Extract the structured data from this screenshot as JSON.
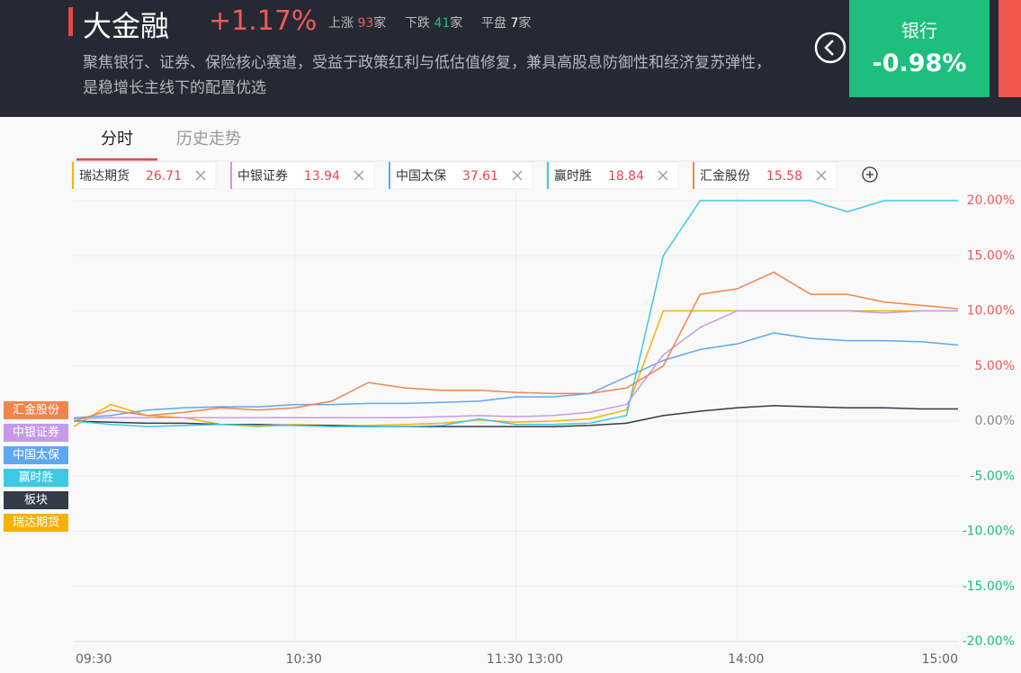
{
  "header": {
    "title": "大金融",
    "change": "+1.17%",
    "up_label": "上涨",
    "up_count": 93,
    "down_label": "下跌",
    "down_count": 41,
    "flat_label": "平盘",
    "flat_count": 7,
    "unit": "家",
    "description": "聚焦银行、证券、保险核心赛道，受益于政策红利与低估值修复，兼具高股息防御性和经济复苏弹性，是稳增长主线下的配置优选"
  },
  "sector_card": {
    "name": "银行",
    "change": "-0.98%"
  },
  "tabs": [
    "分时",
    "历史走势"
  ],
  "chips": [
    {
      "name": "瑞达期货",
      "value": 26.71
    },
    {
      "name": "中银证券",
      "value": 13.94
    },
    {
      "name": "中国太保",
      "value": 37.61
    },
    {
      "name": "赢时胜",
      "value": 18.84
    },
    {
      "name": "汇金股份",
      "value": 15.58
    }
  ],
  "chart_data": {
    "type": "line",
    "categories": [
      "09:30",
      null,
      null,
      null,
      null,
      null,
      "10:30",
      null,
      null,
      null,
      null,
      null,
      "11:30 13:00",
      null,
      null,
      null,
      null,
      null,
      "14:00",
      null,
      null,
      null,
      null,
      null,
      "15:00"
    ],
    "series": [
      {
        "name": "汇金股份",
        "color": "#f0844f",
        "values": [
          0,
          1.0,
          0.5,
          0.8,
          1.2,
          1.0,
          1.2,
          1.8,
          3.5,
          3.0,
          2.8,
          2.8,
          2.6,
          2.5,
          2.5,
          3.0,
          5,
          11.5,
          12,
          13.5,
          11.5,
          11.5,
          10.8,
          10.5,
          10.2
        ]
      },
      {
        "name": "中银证券",
        "color": "#c59be8",
        "values": [
          0.2,
          0.3,
          0.3,
          0.3,
          0.3,
          0.3,
          0.3,
          0.3,
          0.3,
          0.3,
          0.4,
          0.5,
          0.4,
          0.5,
          0.8,
          1.5,
          6,
          8.5,
          10,
          10,
          10,
          10,
          9.8,
          10,
          10
        ]
      },
      {
        "name": "中国太保",
        "color": "#5ea8f0",
        "values": [
          0.3,
          0.5,
          1.0,
          1.2,
          1.3,
          1.3,
          1.5,
          1.5,
          1.6,
          1.6,
          1.7,
          1.8,
          2.2,
          2.2,
          2.5,
          4,
          5.5,
          6.5,
          7,
          8,
          7.5,
          7.3,
          7.3,
          7.2,
          6.9
        ]
      },
      {
        "name": "赢时胜",
        "color": "#3ec8e4",
        "values": [
          0,
          -0.3,
          -0.5,
          -0.4,
          -0.3,
          -0.4,
          -0.4,
          -0.5,
          -0.5,
          -0.5,
          -0.4,
          0.2,
          -0.3,
          -0.3,
          -0.2,
          0.5,
          15,
          20,
          20,
          20,
          20,
          19,
          20,
          20,
          20
        ]
      },
      {
        "name": "板块",
        "color": "#333a48",
        "values": [
          0,
          -0.1,
          -0.2,
          -0.2,
          -0.3,
          -0.3,
          -0.4,
          -0.4,
          -0.5,
          -0.5,
          -0.5,
          -0.5,
          -0.5,
          -0.5,
          -0.4,
          -0.2,
          0.5,
          0.9,
          1.2,
          1.4,
          1.3,
          1.2,
          1.2,
          1.1,
          1.1
        ]
      },
      {
        "name": "瑞达期货",
        "color": "#f5b200",
        "values": [
          -0.5,
          1.5,
          0.5,
          0.3,
          -0.3,
          -0.5,
          -0.3,
          -0.4,
          -0.4,
          -0.3,
          -0.2,
          0.1,
          -0.1,
          0,
          0.2,
          1.0,
          10,
          10,
          10,
          10,
          10,
          10,
          10,
          10,
          10
        ]
      }
    ],
    "ylim": [
      -20,
      20
    ],
    "yticks": [
      {
        "value": -20,
        "label": "-20.00%"
      },
      {
        "value": -15,
        "label": "-15.00%"
      },
      {
        "value": -10,
        "label": "-10.00%"
      },
      {
        "value": -5,
        "label": "-5.00%"
      },
      {
        "value": 0,
        "label": "0.00%"
      },
      {
        "value": 5,
        "label": "5.00%"
      },
      {
        "value": 10,
        "label": "10.00%"
      },
      {
        "value": 15,
        "label": "15.00%"
      },
      {
        "value": 20,
        "label": "20.00%"
      }
    ],
    "grid": true
  }
}
